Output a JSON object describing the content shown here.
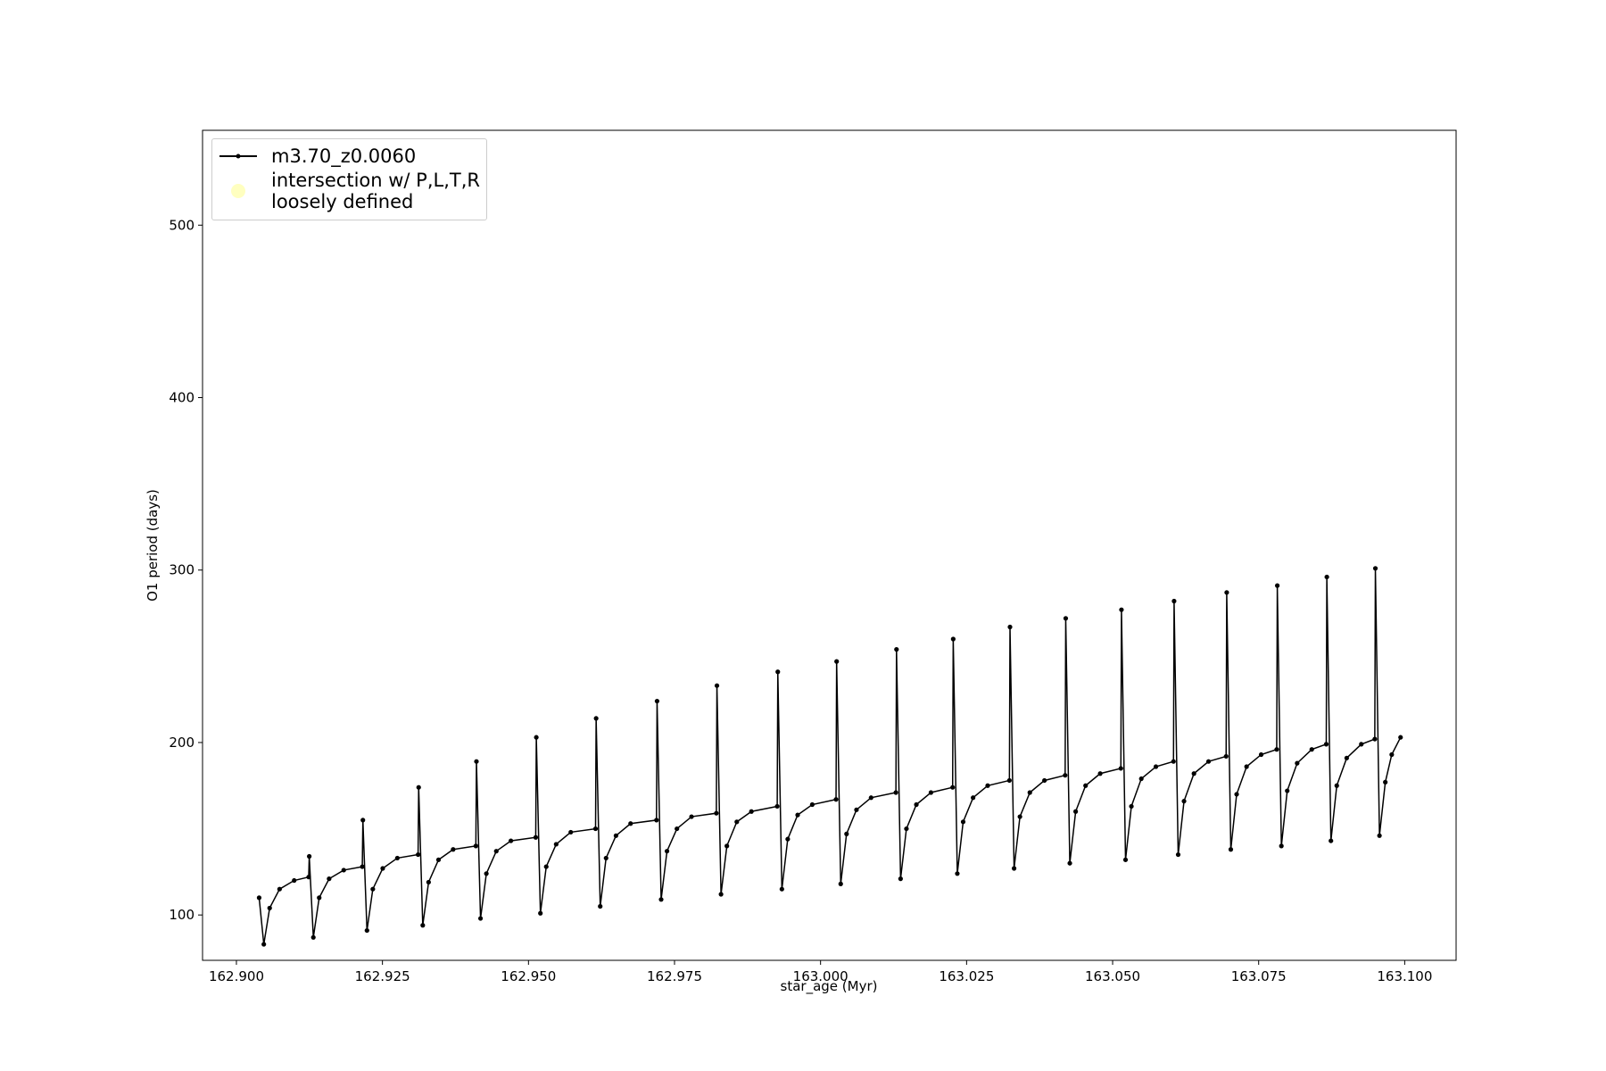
{
  "chart_data": {
    "type": "line",
    "xlabel": "star_age (Myr)",
    "ylabel": "O1 period (days)",
    "xlim": [
      162.8942,
      163.1088
    ],
    "ylim": [
      73.7,
      555
    ],
    "xticks": [
      {
        "value": 162.9,
        "label": "162.900"
      },
      162.925,
      {
        "value": 162.95,
        "label": "162.950"
      },
      162.975,
      {
        "value": 163.0,
        "label": "163.000"
      },
      163.025,
      {
        "value": 163.05,
        "label": "163.050"
      },
      163.075,
      {
        "value": 163.1,
        "label": "163.100"
      }
    ],
    "yticks": [
      100,
      200,
      300,
      400,
      500
    ],
    "grid": false,
    "legend": "upper left",
    "series": [
      {
        "name": "m3.70_z0.0060",
        "color": "#000000",
        "x": [
          162.90389,
          162.90469,
          162.90569,
          162.90739,
          162.90989,
          162.91237,
          162.91247,
          162.91317,
          162.91417,
          162.91587,
          162.91837,
          162.92155,
          162.92165,
          162.92235,
          162.92335,
          162.92505,
          162.92755,
          162.9311,
          162.9312,
          162.9319,
          162.9329,
          162.9346,
          162.9371,
          162.94099,
          162.94109,
          162.94179,
          162.94279,
          162.94449,
          162.94699,
          162.95124,
          162.95134,
          162.95204,
          162.95304,
          162.95474,
          162.95724,
          162.96148,
          162.96158,
          162.96228,
          162.96328,
          162.96498,
          162.96748,
          162.97191,
          162.97201,
          162.97271,
          162.97371,
          162.97541,
          162.97791,
          162.98216,
          162.98226,
          162.98296,
          162.98396,
          162.98566,
          162.98816,
          162.99258,
          162.99268,
          162.99338,
          162.99438,
          162.99608,
          162.99858,
          163.00265,
          163.00275,
          163.00345,
          163.00445,
          163.00615,
          163.00865,
          163.0129,
          163.013,
          163.0137,
          163.0147,
          163.0164,
          163.0189,
          163.02261,
          163.02271,
          163.02341,
          163.02441,
          163.02611,
          163.02861,
          163.03233,
          163.03243,
          163.03313,
          163.03413,
          163.03583,
          163.03833,
          163.04187,
          163.04197,
          163.04267,
          163.04367,
          163.04537,
          163.04787,
          163.05141,
          163.05151,
          163.05221,
          163.05321,
          163.05491,
          163.05741,
          163.06042,
          163.06052,
          163.06122,
          163.06222,
          163.06392,
          163.06642,
          163.06943,
          163.06953,
          163.07023,
          163.07123,
          163.07293,
          163.07543,
          163.07809,
          163.07819,
          163.07889,
          163.07989,
          163.08159,
          163.08409,
          163.08657,
          163.08667,
          163.08737,
          163.08837,
          163.09007,
          163.09257,
          163.09488,
          163.09498,
          163.09568,
          163.09668,
          163.09778,
          163.09929
        ],
        "values": [
          110,
          83,
          104,
          115,
          120,
          122,
          134,
          87,
          110,
          121,
          126,
          128,
          155,
          91,
          115,
          127,
          133,
          135,
          174,
          94,
          119,
          132,
          138,
          140,
          189,
          98,
          124,
          137,
          143,
          145,
          203,
          101,
          128,
          141,
          148,
          150,
          214,
          105,
          133,
          146,
          153,
          155,
          224,
          109,
          137,
          150,
          157,
          159,
          233,
          112,
          140,
          154,
          160,
          163,
          241,
          115,
          144,
          158,
          164,
          167,
          247,
          118,
          147,
          161,
          168,
          171,
          254,
          121,
          150,
          164,
          171,
          174,
          260,
          124,
          154,
          168,
          175,
          178,
          267,
          127,
          157,
          171,
          178,
          181,
          272,
          130,
          160,
          175,
          182,
          185,
          277,
          132,
          163,
          179,
          186,
          189,
          282,
          135,
          166,
          182,
          189,
          192,
          287,
          138,
          170,
          186,
          193,
          196,
          291,
          140,
          172,
          188,
          196,
          199,
          296,
          143,
          175,
          191,
          199,
          202,
          301,
          146,
          177,
          193,
          203
        ]
      },
      {
        "name": "intersection w/ P,L,T,R\nloosely defined",
        "color": "#ffffc0",
        "x": [],
        "values": []
      }
    ]
  }
}
